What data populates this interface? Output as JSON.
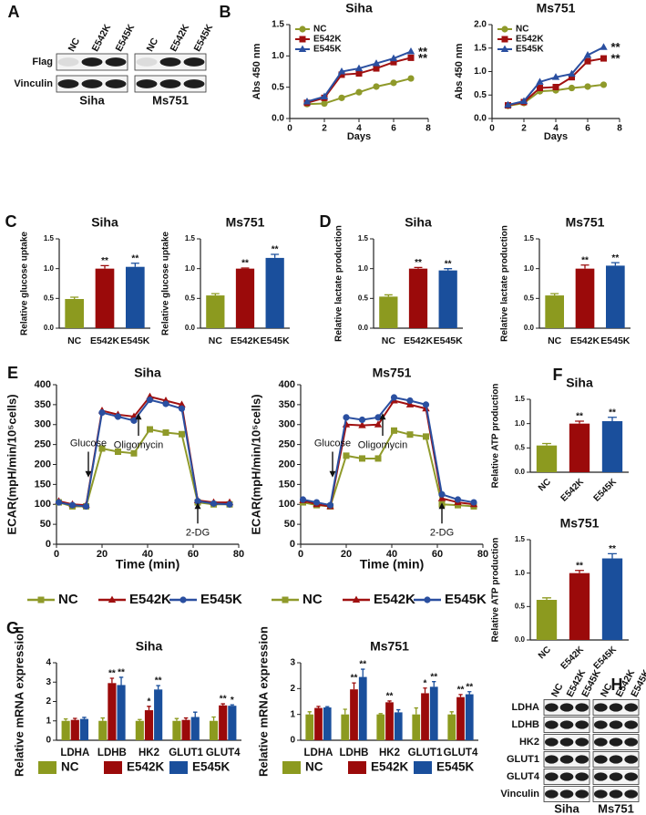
{
  "panels": [
    "A",
    "B",
    "C",
    "D",
    "E",
    "F",
    "G",
    "H"
  ],
  "blots": [
    {
      "rows": [
        "Flag",
        "Vinculin"
      ],
      "lanes": [
        "NC",
        "E542K",
        "E545K"
      ],
      "groups": [
        "Siha",
        "Ms751"
      ]
    },
    {
      "rows": [
        "LDHA",
        "LDHB",
        "HK2",
        "GLUT1",
        "GLUT4",
        "Vinculin"
      ],
      "lanes": [
        "NC",
        "E542K",
        "E545K"
      ],
      "groups": [
        "Siha",
        "Ms751"
      ]
    }
  ],
  "chart_data": [
    {
      "type": "line",
      "title": "Siha",
      "xlabel": "Days",
      "ylabel": "Abs 450 nm",
      "x": [
        1,
        2,
        3,
        4,
        5,
        6,
        7
      ],
      "series": [
        {
          "name": "NC",
          "color": "#8f9a2a",
          "marker": "circle",
          "values": [
            0.23,
            0.24,
            0.33,
            0.42,
            0.51,
            0.57,
            0.64
          ]
        },
        {
          "name": "E542K",
          "color": "#a01010",
          "marker": "square",
          "values": [
            0.25,
            0.33,
            0.7,
            0.72,
            0.8,
            0.9,
            0.97
          ],
          "significance": "**"
        },
        {
          "name": "E545K",
          "color": "#2a4fa0",
          "marker": "triangle",
          "values": [
            0.27,
            0.35,
            0.75,
            0.8,
            0.88,
            0.96,
            1.07
          ],
          "significance": "**"
        }
      ],
      "xlim": [
        0,
        8
      ],
      "xticks": [
        0,
        2,
        4,
        6,
        8
      ],
      "ylim": [
        0,
        1.5
      ],
      "yticks": [
        {
          "value": 0,
          "label": "0.0"
        },
        0.5,
        {
          "value": 1,
          "label": "1.0"
        },
        1.5
      ],
      "legend": "top-left"
    },
    {
      "type": "line",
      "title": "Ms751",
      "xlabel": "Days",
      "ylabel": "Abs 450 nm",
      "x": [
        1,
        2,
        3,
        4,
        5,
        6,
        7
      ],
      "series": [
        {
          "name": "NC",
          "color": "#8f9a2a",
          "marker": "circle",
          "values": [
            0.27,
            0.33,
            0.58,
            0.6,
            0.65,
            0.68,
            0.72
          ]
        },
        {
          "name": "E542K",
          "color": "#a01010",
          "marker": "square",
          "values": [
            0.28,
            0.35,
            0.65,
            0.67,
            0.88,
            1.22,
            1.28
          ],
          "significance": "**"
        },
        {
          "name": "E545K",
          "color": "#2a4fa0",
          "marker": "triangle",
          "values": [
            0.29,
            0.37,
            0.78,
            0.88,
            0.95,
            1.35,
            1.52
          ],
          "significance": "**"
        }
      ],
      "xlim": [
        0,
        8
      ],
      "xticks": [
        0,
        2,
        4,
        6,
        8
      ],
      "ylim": [
        0,
        2
      ],
      "yticks": [
        {
          "value": 0,
          "label": "0.0"
        },
        0.5,
        {
          "value": 1,
          "label": "1.0"
        },
        1.5,
        {
          "value": 2,
          "label": "2.0"
        }
      ],
      "legend": "top-left"
    },
    {
      "type": "bar",
      "title": "Siha",
      "ylabel": "Relative glucose uptake",
      "categories": [
        "NC",
        "E542K",
        "E545K"
      ],
      "values": [
        0.49,
        1.0,
        1.03
      ],
      "errors": [
        0.03,
        0.05,
        0.06
      ],
      "colors": [
        "#8c9a1f",
        "#9b0a0a",
        "#1a4f9c"
      ],
      "significance": [
        null,
        "**",
        "**"
      ],
      "ylim": [
        0,
        1.5
      ],
      "yticks": [
        {
          "value": 0,
          "label": "0.0"
        },
        0.5,
        {
          "value": 1,
          "label": "1.0"
        },
        1.5
      ]
    },
    {
      "type": "bar",
      "title": "Ms751",
      "ylabel": "Relative glucose uptake",
      "categories": [
        "NC",
        "E542K",
        "E545K"
      ],
      "values": [
        0.55,
        1.0,
        1.18
      ],
      "errors": [
        0.03,
        0.01,
        0.06
      ],
      "colors": [
        "#8c9a1f",
        "#9b0a0a",
        "#1a4f9c"
      ],
      "significance": [
        null,
        "**",
        "**"
      ],
      "ylim": [
        0,
        1.5
      ],
      "yticks": [
        {
          "value": 0,
          "label": "0.0"
        },
        0.5,
        {
          "value": 1,
          "label": "1.0"
        },
        1.5
      ]
    },
    {
      "type": "bar",
      "title": "Siha",
      "ylabel": "Relative lactate production",
      "categories": [
        "NC",
        "E542K",
        "E545K"
      ],
      "values": [
        0.53,
        1.0,
        0.97
      ],
      "errors": [
        0.03,
        0.02,
        0.03
      ],
      "colors": [
        "#8c9a1f",
        "#9b0a0a",
        "#1a4f9c"
      ],
      "significance": [
        null,
        "**",
        "**"
      ],
      "ylim": [
        0,
        1.5
      ],
      "yticks": [
        {
          "value": 0,
          "label": "0.0"
        },
        0.5,
        {
          "value": 1,
          "label": "1.0"
        },
        1.5
      ]
    },
    {
      "type": "bar",
      "title": "Ms751",
      "ylabel": "Relative lactate production",
      "categories": [
        "NC",
        "E542K",
        "E545K"
      ],
      "values": [
        0.55,
        1.0,
        1.05
      ],
      "errors": [
        0.03,
        0.06,
        0.05
      ],
      "colors": [
        "#8c9a1f",
        "#9b0a0a",
        "#1a4f9c"
      ],
      "significance": [
        null,
        "**",
        "**"
      ],
      "ylim": [
        0,
        1.5
      ],
      "yticks": [
        {
          "value": 0,
          "label": "0.0"
        },
        0.5,
        {
          "value": 1,
          "label": "1.0"
        },
        1.5
      ]
    },
    {
      "type": "line",
      "title": "Siha",
      "xlabel": "Time (min)",
      "ylabel": "ECAR(mpH/min/10⁵cells)",
      "x": [
        1,
        7,
        13,
        20,
        27,
        34,
        41,
        48,
        55,
        62,
        69,
        76
      ],
      "series": [
        {
          "name": "NC",
          "color": "#8f9a2a",
          "marker": "square",
          "values": [
            105,
            95,
            95,
            240,
            232,
            228,
            288,
            280,
            276,
            105,
            100,
            100
          ]
        },
        {
          "name": "E542K",
          "color": "#a01010",
          "marker": "triangle",
          "values": [
            108,
            100,
            98,
            335,
            325,
            320,
            370,
            360,
            350,
            110,
            105,
            105
          ]
        },
        {
          "name": "E545K",
          "color": "#2a4fa0",
          "marker": "circle",
          "values": [
            105,
            98,
            95,
            330,
            320,
            310,
            362,
            352,
            340,
            108,
            102,
            100
          ]
        }
      ],
      "annotations": [
        {
          "text": "Glucose",
          "x": 14,
          "direction": "down"
        },
        {
          "text": "Oligomycin",
          "x": 36,
          "direction": "up"
        },
        {
          "text": "2-DG",
          "x": 62,
          "direction": "up"
        }
      ],
      "xlim": [
        0,
        80
      ],
      "xticks": [
        0,
        20,
        40,
        60,
        80
      ],
      "ylim": [
        0,
        400
      ],
      "yticks": [
        0,
        50,
        100,
        150,
        200,
        250,
        300,
        350,
        400
      ],
      "legend": "bottom"
    },
    {
      "type": "line",
      "title": "Ms751",
      "xlabel": "Time (min)",
      "ylabel": "ECAR(mpH/min/10⁵cells)",
      "x": [
        1,
        7,
        13,
        20,
        27,
        34,
        41,
        48,
        55,
        62,
        69,
        76
      ],
      "series": [
        {
          "name": "NC",
          "color": "#8f9a2a",
          "marker": "square",
          "values": [
            105,
            98,
            95,
            222,
            215,
            215,
            285,
            275,
            270,
            100,
            98,
            95
          ]
        },
        {
          "name": "E542K",
          "color": "#a01010",
          "marker": "triangle",
          "values": [
            110,
            100,
            95,
            300,
            298,
            300,
            360,
            350,
            340,
            115,
            105,
            100
          ]
        },
        {
          "name": "E545K",
          "color": "#2a4fa0",
          "marker": "circle",
          "values": [
            112,
            105,
            98,
            318,
            312,
            318,
            368,
            360,
            350,
            125,
            112,
            105
          ]
        }
      ],
      "annotations": [
        {
          "text": "Glucose",
          "x": 14,
          "direction": "down"
        },
        {
          "text": "Oligomycin",
          "x": 36,
          "direction": "up"
        },
        {
          "text": "2-DG",
          "x": 62,
          "direction": "up"
        }
      ],
      "xlim": [
        0,
        80
      ],
      "xticks": [
        0,
        20,
        40,
        60,
        80
      ],
      "ylim": [
        0,
        400
      ],
      "yticks": [
        0,
        50,
        100,
        150,
        200,
        250,
        300,
        350,
        400
      ],
      "legend": "bottom"
    },
    {
      "type": "bar",
      "title": "Siha",
      "ylabel": "Relative ATP production",
      "categories": [
        "NC",
        "E542K",
        "E545K"
      ],
      "values": [
        0.55,
        1.0,
        1.05
      ],
      "errors": [
        0.04,
        0.05,
        0.08
      ],
      "colors": [
        "#8c9a1f",
        "#9b0a0a",
        "#1a4f9c"
      ],
      "significance": [
        null,
        "**",
        "**"
      ],
      "ylim": [
        0,
        1.5
      ],
      "yticks": [
        {
          "value": 0,
          "label": "0.0"
        },
        0.5,
        {
          "value": 1,
          "label": "1.0"
        },
        1.5
      ]
    },
    {
      "type": "bar",
      "title": "Ms751",
      "ylabel": "Relative ATP production",
      "categories": [
        "NC",
        "E542K",
        "E545K"
      ],
      "values": [
        0.6,
        1.0,
        1.22
      ],
      "errors": [
        0.03,
        0.04,
        0.07
      ],
      "colors": [
        "#8c9a1f",
        "#9b0a0a",
        "#1a4f9c"
      ],
      "significance": [
        null,
        "**",
        "**"
      ],
      "ylim": [
        0,
        1.5
      ],
      "yticks": [
        {
          "value": 0,
          "label": "0.0"
        },
        0.5,
        {
          "value": 1,
          "label": "1.0"
        },
        1.5
      ]
    },
    {
      "type": "bar",
      "title": "Siha",
      "ylabel": "Relative mRNA expression",
      "categories": [
        "LDHA",
        "LDHB",
        "HK2",
        "GLUT1",
        "GLUT4"
      ],
      "series": [
        {
          "name": "NC",
          "color": "#8c9a1f",
          "values": [
            1,
            1,
            1,
            1,
            1
          ],
          "errors": [
            0.1,
            0.15,
            0.07,
            0.12,
            0.2
          ]
        },
        {
          "name": "E542K",
          "color": "#9b0a0a",
          "values": [
            1.05,
            2.95,
            1.55,
            1.05,
            1.8
          ],
          "errors": [
            0.08,
            0.25,
            0.2,
            0.1,
            0.08
          ],
          "significance": [
            null,
            "**",
            "*",
            null,
            "**"
          ]
        },
        {
          "name": "E545K",
          "color": "#1a4f9c",
          "values": [
            1.1,
            2.85,
            2.62,
            1.2,
            1.78
          ],
          "errors": [
            0.08,
            0.4,
            0.2,
            0.25,
            0.05
          ],
          "significance": [
            null,
            "**",
            "**",
            null,
            "*"
          ]
        }
      ],
      "ylim": [
        0,
        4
      ],
      "yticks": [
        0,
        1,
        2,
        3,
        4
      ],
      "legend": "bottom"
    },
    {
      "type": "bar",
      "title": "Ms751",
      "ylabel": "Relative mRNA expression",
      "categories": [
        "LDHA",
        "LDHB",
        "HK2",
        "GLUT1",
        "GLUT4"
      ],
      "series": [
        {
          "name": "NC",
          "color": "#8c9a1f",
          "values": [
            1,
            1,
            1,
            1,
            1
          ],
          "errors": [
            0.1,
            0.2,
            0.03,
            0.25,
            0.1
          ]
        },
        {
          "name": "E542K",
          "color": "#9b0a0a",
          "values": [
            1.25,
            1.97,
            1.47,
            1.82,
            1.67
          ],
          "errors": [
            0.06,
            0.25,
            0.05,
            0.2,
            0.1
          ],
          "significance": [
            null,
            "**",
            "**",
            "*",
            "**"
          ]
        },
        {
          "name": "E545K",
          "color": "#1a4f9c",
          "values": [
            1.27,
            2.45,
            1.08,
            2.07,
            1.78
          ],
          "errors": [
            0.03,
            0.3,
            0.1,
            0.2,
            0.1
          ],
          "significance": [
            null,
            "**",
            null,
            "**",
            "**"
          ]
        }
      ],
      "ylim": [
        0,
        3
      ],
      "yticks": [
        0,
        1,
        2,
        3
      ],
      "legend": "bottom"
    }
  ]
}
